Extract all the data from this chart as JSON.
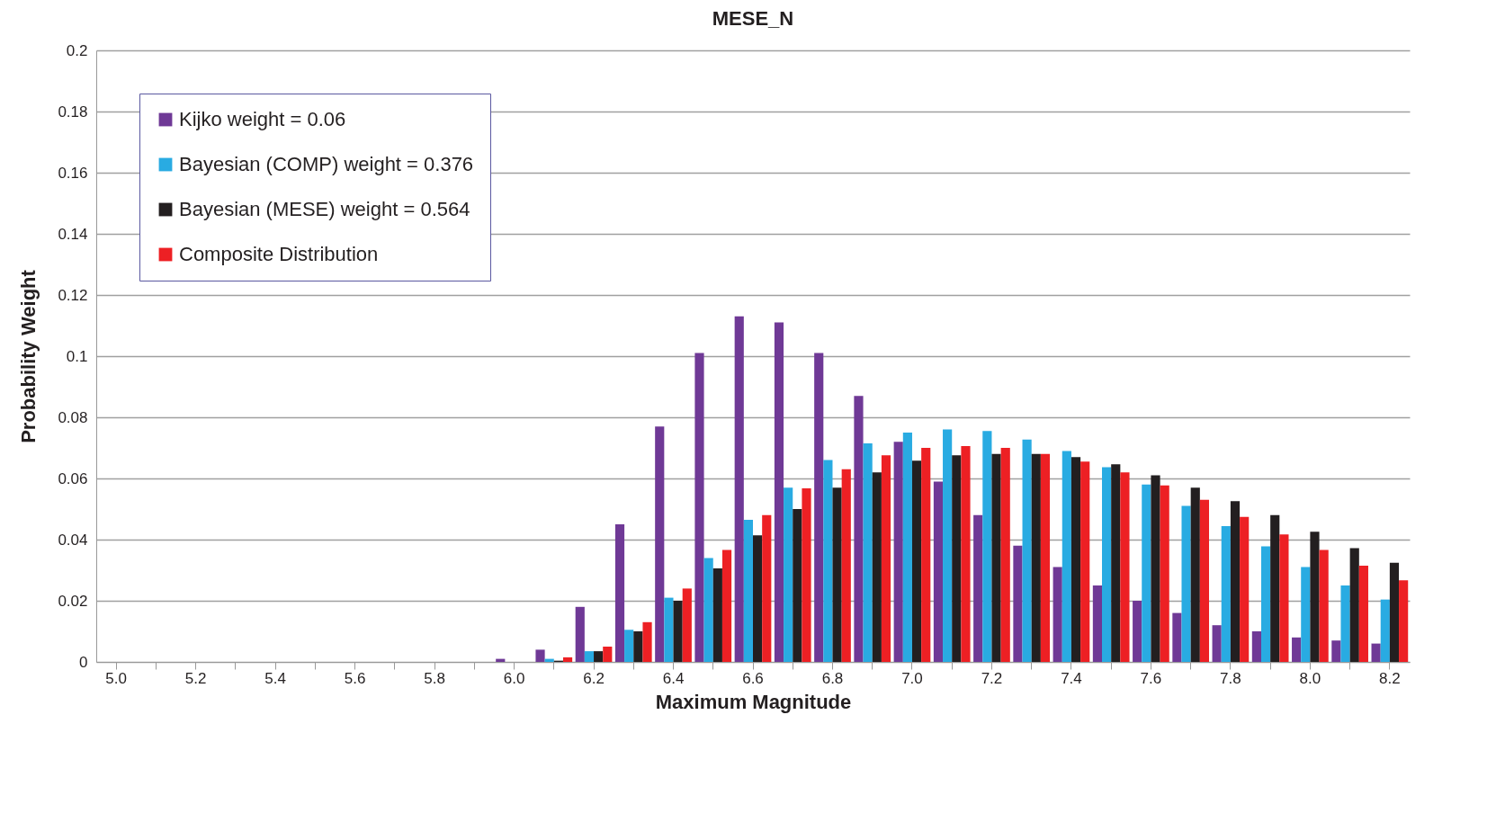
{
  "chart_data": {
    "type": "bar",
    "title": "MESE_N",
    "xlabel": "Maximum Magnitude",
    "ylabel": "Probability Weight",
    "categories": [
      "5.0",
      null,
      "5.2",
      null,
      "5.4",
      null,
      "5.6",
      null,
      "5.8",
      null,
      "6.0",
      null,
      "6.2",
      null,
      "6.4",
      null,
      "6.6",
      null,
      "6.8",
      null,
      "7.0",
      null,
      "7.2",
      null,
      "7.4",
      null,
      "7.6",
      null,
      "7.8",
      null,
      "8.0",
      null,
      "8.2"
    ],
    "series": [
      {
        "name": "Kijko weight = 0.06",
        "color": "#6f3996",
        "values": [
          0,
          0,
          0,
          0,
          0,
          0,
          0,
          0,
          0,
          0,
          0.001,
          0.004,
          0.018,
          0.045,
          0.077,
          0.101,
          0.113,
          0.111,
          0.101,
          0.087,
          0.072,
          0.059,
          0.048,
          0.038,
          0.031,
          0.025,
          0.02,
          0.016,
          0.012,
          0.01,
          0.008,
          0.007,
          0.006
        ]
      },
      {
        "name": "Bayesian (COMP) weight = 0.376",
        "color": "#29abe2",
        "values": [
          0,
          0,
          0,
          0,
          0,
          0,
          0,
          0,
          0,
          0,
          0,
          0.001,
          0.0035,
          0.0105,
          0.021,
          0.034,
          0.0465,
          0.057,
          0.066,
          0.0715,
          0.075,
          0.076,
          0.0755,
          0.0727,
          0.069,
          0.0637,
          0.058,
          0.051,
          0.0444,
          0.0378,
          0.031,
          0.025,
          0.0204
        ]
      },
      {
        "name": "Bayesian (MESE) weight = 0.564",
        "color": "#231f20",
        "values": [
          0,
          0,
          0,
          0,
          0,
          0,
          0,
          0,
          0,
          0,
          0,
          0.0004,
          0.0035,
          0.01,
          0.02,
          0.0306,
          0.0414,
          0.05,
          0.057,
          0.062,
          0.0658,
          0.0676,
          0.068,
          0.068,
          0.067,
          0.0646,
          0.061,
          0.057,
          0.0526,
          0.048,
          0.0426,
          0.0372,
          0.0324
        ]
      },
      {
        "name": "Composite Distribution",
        "color": "#ed2024",
        "values": [
          0,
          0,
          0,
          0,
          0,
          0,
          0,
          0,
          0,
          0,
          0,
          0.0015,
          0.005,
          0.013,
          0.024,
          0.0366,
          0.048,
          0.0568,
          0.063,
          0.0676,
          0.07,
          0.0706,
          0.07,
          0.068,
          0.0655,
          0.062,
          0.0577,
          0.053,
          0.0474,
          0.0417,
          0.0366,
          0.0315,
          0.0267
        ]
      }
    ],
    "ylim": [
      0,
      0.2
    ],
    "yticks": [
      0,
      0.02,
      0.04,
      0.06,
      0.08,
      0.1,
      0.12,
      0.14,
      0.16,
      0.18,
      0.2
    ],
    "grid": "y",
    "legend": "top left"
  }
}
